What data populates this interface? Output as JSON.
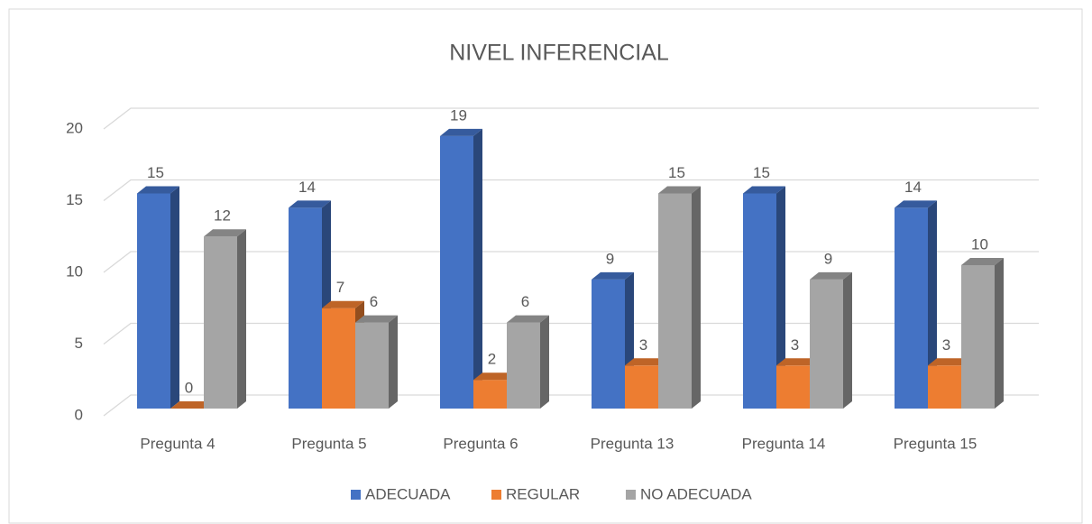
{
  "chart_data": {
    "type": "bar3d",
    "title": "NIVEL INFERENCIAL",
    "categories": [
      "Pregunta 4",
      "Pregunta 5",
      "Pregunta 6",
      "Pregunta 13",
      "Pregunta 14",
      "Pregunta 15"
    ],
    "series": [
      {
        "name": "ADECUADA",
        "color": "#4472c4",
        "values": [
          15,
          14,
          19,
          9,
          15,
          14
        ]
      },
      {
        "name": "REGULAR",
        "color": "#ed7d31",
        "values": [
          0,
          7,
          2,
          3,
          3,
          3
        ]
      },
      {
        "name": "NO ADECUADA",
        "color": "#a5a5a5",
        "values": [
          12,
          6,
          6,
          15,
          9,
          10
        ]
      }
    ],
    "ylim": [
      0,
      20
    ],
    "yticks": [
      0,
      5,
      10,
      15,
      20
    ],
    "grid": true,
    "legend": "bottom"
  }
}
